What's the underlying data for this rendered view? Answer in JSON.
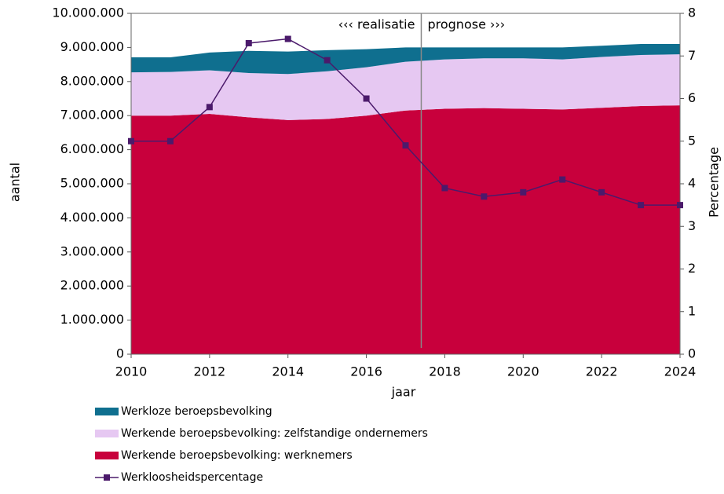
{
  "chart_data": {
    "type": "area+line",
    "x_label": "jaar",
    "y_label": "aantal",
    "y2_label": "Percentage",
    "annotations": [
      "‹‹‹ realisatie",
      "prognose ›››"
    ],
    "divider_x": 2017.4,
    "x": [
      2010,
      2011,
      2012,
      2013,
      2014,
      2015,
      2016,
      2017,
      2018,
      2019,
      2020,
      2021,
      2022,
      2023,
      2024
    ],
    "series": [
      {
        "name": "Werkende beroepsbevolking: werknemers",
        "color": "#c8003c",
        "type": "area",
        "values": [
          7000000,
          7000000,
          7050000,
          6950000,
          6870000,
          6900000,
          7000000,
          7150000,
          7200000,
          7220000,
          7200000,
          7180000,
          7230000,
          7280000,
          7300000
        ]
      },
      {
        "name": "Werkende beroepsbevolking: zelfstandige ondernemers",
        "color": "#e6c8f2",
        "type": "area",
        "values": [
          1270000,
          1280000,
          1280000,
          1300000,
          1350000,
          1400000,
          1420000,
          1430000,
          1450000,
          1460000,
          1480000,
          1470000,
          1490000,
          1500000,
          1500000
        ]
      },
      {
        "name": "Werkloze beroepsbevolking",
        "color": "#0f6f8f",
        "type": "area",
        "values": [
          440000,
          430000,
          520000,
          650000,
          660000,
          620000,
          530000,
          420000,
          350000,
          320000,
          320000,
          350000,
          330000,
          320000,
          300000
        ]
      },
      {
        "name": "Werkloosheidspercentage",
        "color": "#4b1a6b",
        "type": "line",
        "axis": "y2",
        "values": [
          5.0,
          5.0,
          5.8,
          7.3,
          7.4,
          6.9,
          6.0,
          4.9,
          3.9,
          3.7,
          3.8,
          4.1,
          3.8,
          3.5,
          3.5
        ]
      }
    ],
    "xlim": [
      2010,
      2024
    ],
    "xticks": [
      2010,
      2012,
      2014,
      2016,
      2018,
      2020,
      2022,
      2024
    ],
    "ylim": [
      0,
      10000000
    ],
    "yticks": [
      0,
      {
        "value": 1000000,
        "label": "1.000.000"
      },
      {
        "value": 2000000,
        "label": "2.000.000"
      },
      {
        "value": 3000000,
        "label": "3.000.000"
      },
      {
        "value": 4000000,
        "label": "4.000.000"
      },
      {
        "value": 5000000,
        "label": "5.000.000"
      },
      {
        "value": 6000000,
        "label": "6.000.000"
      },
      {
        "value": 7000000,
        "label": "7.000.000"
      },
      {
        "value": 8000000,
        "label": "8.000.000"
      },
      {
        "value": 9000000,
        "label": "9.000.000"
      },
      {
        "value": 10000000,
        "label": "10.000.000"
      }
    ],
    "y2lim": [
      0,
      8
    ],
    "y2ticks": [
      0,
      1,
      2,
      3,
      4,
      5,
      6,
      7,
      8
    ],
    "legend": "bottom"
  }
}
